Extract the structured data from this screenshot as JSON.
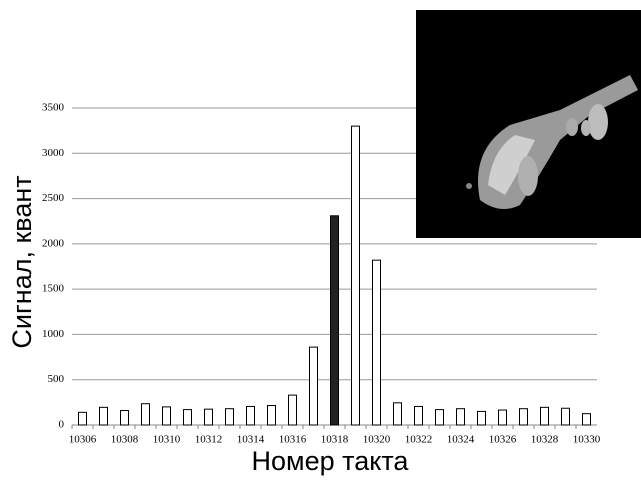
{
  "chart_data": {
    "type": "bar",
    "x_label": "Номер такта",
    "y_label": "Сигнал, квант",
    "categories": [
      "10306",
      null,
      "10308",
      null,
      "10310",
      null,
      "10312",
      null,
      "10314",
      null,
      "10316",
      null,
      "10318",
      null,
      "10320",
      null,
      "10322",
      null,
      "10324",
      null,
      "10326",
      null,
      "10328",
      null,
      "10330"
    ],
    "values": [
      140,
      195,
      160,
      235,
      200,
      170,
      175,
      180,
      205,
      215,
      330,
      860,
      2310,
      3300,
      1820,
      245,
      205,
      170,
      180,
      150,
      165,
      180,
      195,
      185,
      125
    ],
    "colors": [
      "#ffffff",
      "#ffffff",
      "#ffffff",
      "#ffffff",
      "#ffffff",
      "#ffffff",
      "#ffffff",
      "#ffffff",
      "#ffffff",
      "#ffffff",
      "#ffffff",
      "#ffffff",
      "#222222",
      "#ffffff",
      "#ffffff",
      "#ffffff",
      "#ffffff",
      "#ffffff",
      "#ffffff",
      "#ffffff",
      "#ffffff",
      "#ffffff",
      "#ffffff",
      "#ffffff",
      "#ffffff"
    ],
    "edge_color": "#000000",
    "ylim": [
      0,
      3500
    ],
    "yticks": [
      0,
      500,
      1000,
      1500,
      2000,
      2500,
      3000,
      3500
    ],
    "grid": true
  }
}
